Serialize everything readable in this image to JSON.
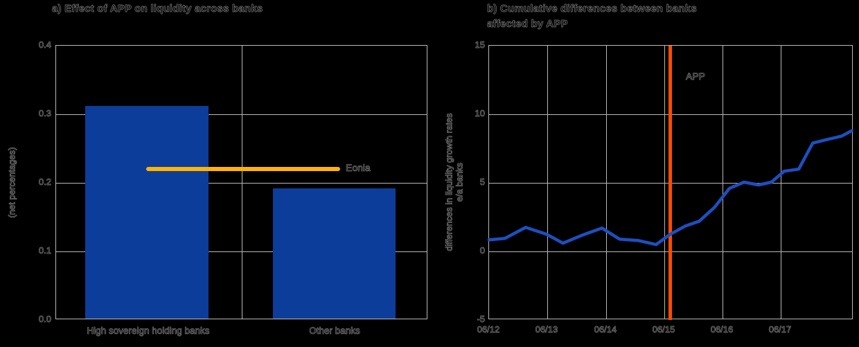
{
  "colors": {
    "background": "#000000",
    "bar_blue": "#0d3d9b",
    "line_blue": "#1d4fc0",
    "eonia_yellow": "#ffb400",
    "app_orange": "#ff4b00",
    "grid_gray": "#b9b9b9",
    "text": "#0a0a0a"
  },
  "panel_a": {
    "title": "a) Effect of APP on liquidity across banks",
    "y_axis_label": "(net percentages)",
    "y_ticks": [
      "0.4",
      "0.3",
      "0.2",
      "0.1",
      "0.0"
    ],
    "categories": [
      "High sovereign holding banks",
      "Other banks"
    ],
    "eonia_label": "Eonia"
  },
  "panel_b": {
    "title_line1": "b) Cumulative differences between banks",
    "title_line2": "affected by APP",
    "y_axis_label_line1": "differences in liquidity growth rates",
    "y_axis_label_line2": "e/a banks",
    "y_ticks": [
      "15",
      "10",
      "5",
      "0",
      "-5"
    ],
    "x_ticks": [
      "06/12",
      "06/13",
      "06/14",
      "06/15",
      "06/16",
      "06/17"
    ],
    "app_annotation": "APP"
  },
  "chart_data": [
    {
      "type": "bar",
      "title": "a) Effect of APP on liquidity across banks",
      "ylabel": "(net percentages)",
      "categories": [
        "High sovereign holding banks",
        "Other banks"
      ],
      "values": [
        0.31,
        0.19
      ],
      "ylim": [
        0.0,
        0.4
      ],
      "y_tick_step": 0.1,
      "grid": true,
      "reference_line": {
        "label": "Eonia",
        "value": 0.22,
        "color": "#ffb400"
      }
    },
    {
      "type": "line",
      "title": "b) Cumulative differences between banks affected by APP",
      "ylabel": "differences in liquidity growth rates e/a banks",
      "x_tick_labels": [
        "06/12",
        "06/13",
        "06/14",
        "06/15",
        "06/16",
        "06/17"
      ],
      "xlim": [
        2012.45,
        2018.71
      ],
      "ylim": [
        -5,
        15
      ],
      "y_tick_step": 5,
      "grid": true,
      "x": [
        2012.45,
        2012.72,
        2013.08,
        2013.44,
        2013.72,
        2014.06,
        2014.39,
        2014.69,
        2015.01,
        2015.32,
        2015.56,
        2015.82,
        2016.06,
        2016.32,
        2016.58,
        2016.83,
        2017.08,
        2017.3,
        2017.52,
        2017.77,
        2018.01,
        2018.25,
        2018.5,
        2018.68
      ],
      "y": [
        0.85,
        0.95,
        1.75,
        1.25,
        0.6,
        1.2,
        1.7,
        0.9,
        0.8,
        0.5,
        1.25,
        1.85,
        2.2,
        3.2,
        4.6,
        5.05,
        4.85,
        5.05,
        5.85,
        6.0,
        7.9,
        8.15,
        8.4,
        8.8
      ],
      "event_line": {
        "label": "APP",
        "x": 2015.56,
        "color": "#ff4b00"
      }
    }
  ]
}
